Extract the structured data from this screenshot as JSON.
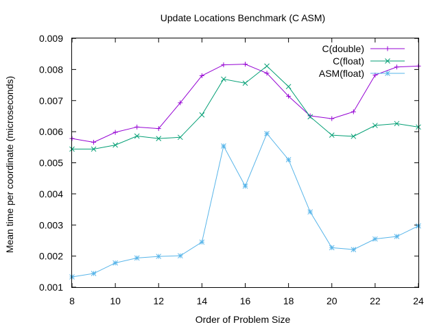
{
  "chart_data": {
    "type": "line",
    "title": "Update Locations Benchmark (C   ASM)",
    "xlabel": "Order of Problem Size",
    "ylabel": "Mean time per coordinate (microseconds)",
    "xlim": [
      8,
      24
    ],
    "ylim": [
      0.001,
      0.009
    ],
    "xticks": [
      8,
      10,
      12,
      14,
      16,
      18,
      20,
      22,
      24
    ],
    "xtick_labels": [
      "8",
      "10",
      "12",
      "14",
      "16",
      "18",
      "20",
      "22",
      "24"
    ],
    "yticks": [
      0.001,
      0.002,
      0.003,
      0.004,
      0.005,
      0.006,
      0.007,
      0.008,
      0.009
    ],
    "ytick_labels": [
      "0.001",
      "0.002",
      "0.003",
      "0.004",
      "0.005",
      "0.006",
      "0.007",
      "0.008",
      "0.009"
    ],
    "grid": false,
    "legend_position": "top-right",
    "x": [
      8,
      9,
      10,
      11,
      12,
      13,
      14,
      15,
      16,
      17,
      18,
      19,
      20,
      21,
      22,
      23,
      24
    ],
    "series": [
      {
        "name": "C(double)",
        "color": "#9400d3",
        "marker": "plus",
        "values": [
          0.00578,
          0.00566,
          0.00598,
          0.00615,
          0.0061,
          0.00693,
          0.0078,
          0.00815,
          0.00817,
          0.00788,
          0.00714,
          0.00651,
          0.00642,
          0.00664,
          0.00782,
          0.00808,
          0.00811
        ]
      },
      {
        "name": "C(float)",
        "color": "#009e73",
        "marker": "x",
        "values": [
          0.00544,
          0.00544,
          0.00557,
          0.00586,
          0.00578,
          0.00582,
          0.00654,
          0.00769,
          0.00756,
          0.00811,
          0.00745,
          0.00648,
          0.00589,
          0.00585,
          0.0062,
          0.00626,
          0.00615
        ]
      },
      {
        "name": "ASM(float)",
        "color": "#56b4e9",
        "marker": "star",
        "values": [
          0.00133,
          0.00144,
          0.00178,
          0.00194,
          0.00199,
          0.00201,
          0.00245,
          0.00554,
          0.00425,
          0.00594,
          0.0051,
          0.00342,
          0.00227,
          0.00221,
          0.00255,
          0.00263,
          0.00297
        ]
      }
    ]
  }
}
